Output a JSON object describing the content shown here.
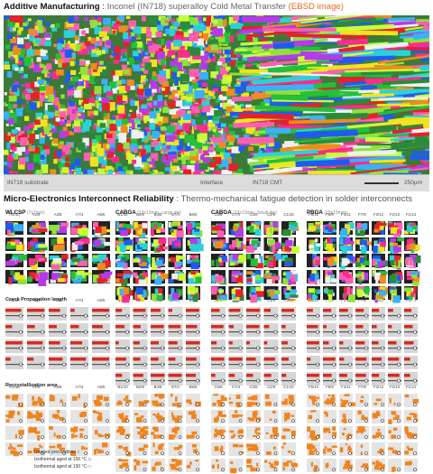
{
  "header": {
    "title_bold": "Additive Manufacturing",
    "title_sep": " : ",
    "title_rest": "Inconel (IN718) superalloy Cold Metal Transfer",
    "title_tag": "(EBSD image)"
  },
  "ebsd_bar": {
    "left_label": "IN718 substrate",
    "mid_label": "Interface",
    "right_label": "IN718 CMT",
    "scale_label": "250μm"
  },
  "section2": {
    "title_bold": "Micro-Electronics Interconnect Reliability",
    "title_rest": " : Thermo-mechanical fatigue detection in solder interconnects"
  },
  "groups": [
    {
      "name": "WLCSP",
      "sub": "(7x7mm)",
      "cols": [
        "A1/10",
        "A2/9",
        "A3/8",
        "A7/4",
        "A6/5"
      ]
    },
    {
      "name": "CABGA",
      "sub": "(13x13mm, Large die)",
      "cols": [
        "B1/10",
        "B2/9",
        "B3/8",
        "B7/4",
        "B6/5"
      ]
    },
    {
      "name": "CABGA",
      "sub": "(13x13mm, Small die)",
      "cols": [
        "C5/6",
        "C7/4",
        "C3/8",
        "C2/9",
        "C1/10"
      ]
    },
    {
      "name": "PBGA",
      "sub": "(15x15mm)",
      "cols": [
        "F5/10",
        "F6/9",
        "F4/11",
        "F7/8",
        "F3/12",
        "F2/13",
        "F1/14"
      ]
    }
  ],
  "rows": {
    "crack": "Crack Propagation length",
    "recryst": "Recrystallization area"
  },
  "legend": [
    {
      "symbol": "○",
      "label": "Unaged precondition"
    },
    {
      "symbol": "◇",
      "label": "Isothermal aged at 100 °C"
    },
    {
      "symbol": "□",
      "label": "Isothermal aged at 150 °C"
    }
  ]
}
